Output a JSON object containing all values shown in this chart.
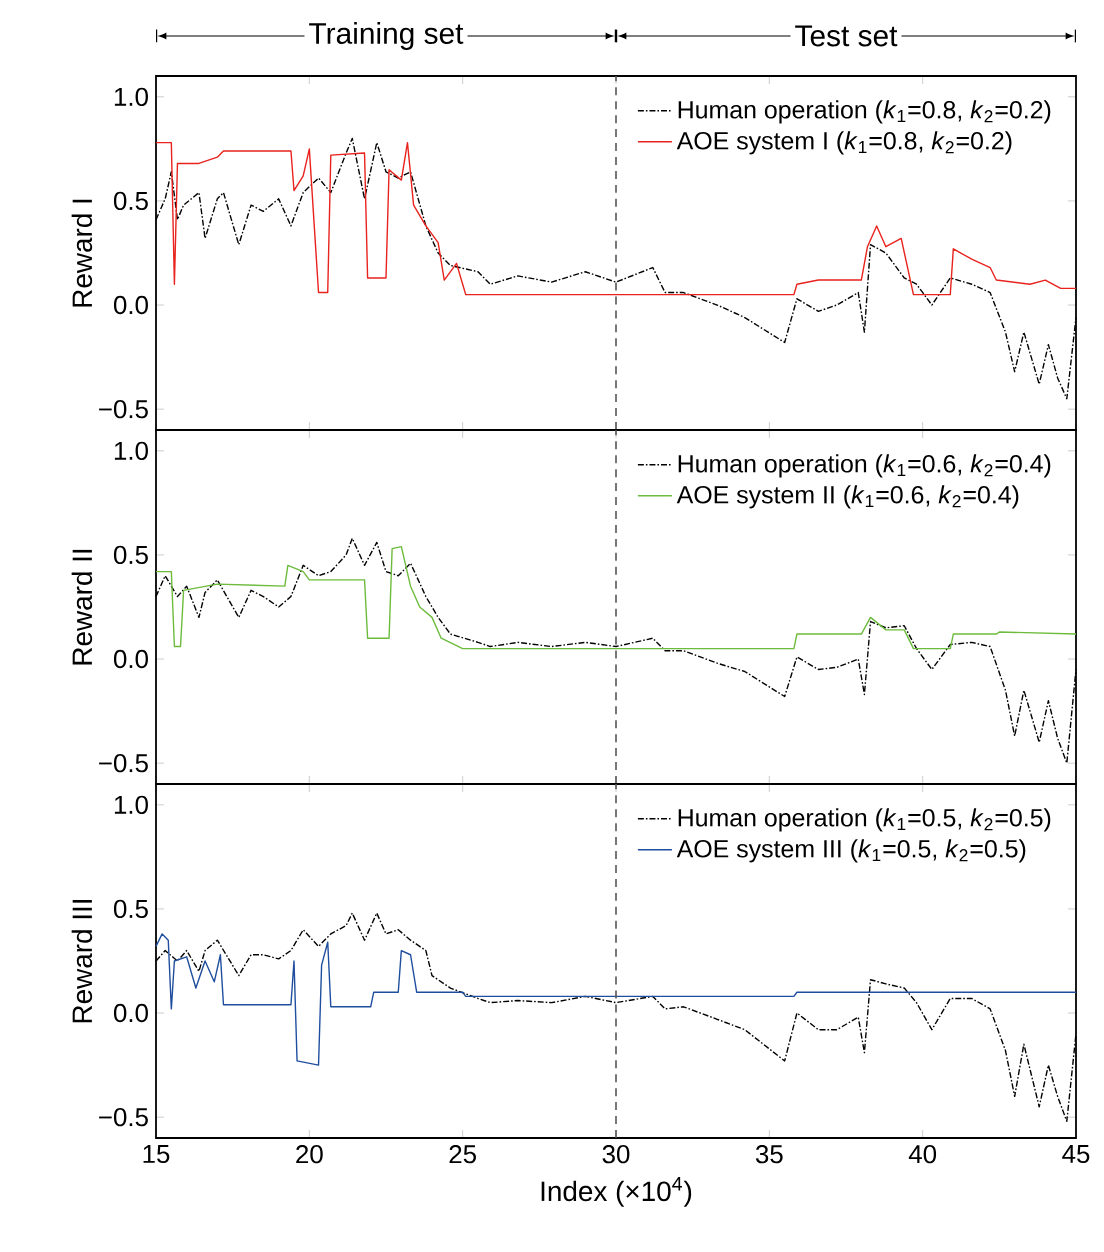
{
  "chart_data": [
    {
      "type": "line",
      "ylabel": "Reward I",
      "annotations": [
        "Training set",
        "Test set"
      ],
      "xlim": [
        15,
        45
      ],
      "ylim": [
        -0.6,
        1.1
      ],
      "xticks": [
        15,
        20,
        25,
        30,
        35,
        40,
        45
      ],
      "yticks": [
        {
          "value": -0.5,
          "label": "−0.5"
        },
        {
          "value": 0,
          "label": "0.0"
        },
        {
          "value": 0.5,
          "label": "0.5"
        },
        {
          "value": 1,
          "label": "1.0"
        }
      ],
      "tick_labels": "y",
      "legend": "top right",
      "ref_lines": [
        {
          "axis": "x",
          "value": 30,
          "color": "#555555",
          "line_style": "dashed"
        }
      ],
      "series": [
        {
          "name": "Human operation (*k*$_{1}$=0.8, *k*$_{2}$=0.2)",
          "color": "#000000",
          "line_style": "dashed",
          "x": [
            15.0,
            15.3,
            15.5,
            15.7,
            15.9,
            16.4,
            16.6,
            17.0,
            17.2,
            17.7,
            18.1,
            18.5,
            19.0,
            19.4,
            19.8,
            20.3,
            20.7,
            21.2,
            21.4,
            21.8,
            22.2,
            22.5,
            22.9,
            23.3,
            23.8,
            24.2,
            24.6,
            25.5,
            25.9,
            26.8,
            27.9,
            29.0,
            30.0,
            31.2,
            31.6,
            32.2,
            33.3,
            34.2,
            35.5,
            35.9,
            36.6,
            37.2,
            37.9,
            38.1,
            38.3,
            38.8,
            39.4,
            39.8,
            40.3,
            40.9,
            41.6,
            42.2,
            42.7,
            43.0,
            43.3,
            43.8,
            44.1,
            44.4,
            44.7,
            45.0
          ],
          "values": [
            0.41,
            0.51,
            0.64,
            0.41,
            0.48,
            0.54,
            0.32,
            0.51,
            0.54,
            0.29,
            0.48,
            0.45,
            0.51,
            0.38,
            0.54,
            0.61,
            0.54,
            0.73,
            0.8,
            0.51,
            0.78,
            0.64,
            0.61,
            0.64,
            0.38,
            0.25,
            0.19,
            0.16,
            0.1,
            0.14,
            0.11,
            0.16,
            0.11,
            0.18,
            0.06,
            0.06,
            0.0,
            -0.06,
            -0.18,
            0.03,
            -0.03,
            0.0,
            0.06,
            -0.13,
            0.29,
            0.25,
            0.13,
            0.1,
            0.0,
            0.13,
            0.1,
            0.06,
            -0.13,
            -0.32,
            -0.13,
            -0.38,
            -0.19,
            -0.35,
            -0.45,
            -0.06
          ]
        },
        {
          "name": "AOE system I (*k*$_{1}$=0.8, *k*$_{2}$=0.2)",
          "color": "#e8221c",
          "line_style": "solid",
          "x": [
            15.0,
            15.5,
            15.6,
            15.7,
            16.4,
            17.0,
            17.2,
            19.4,
            19.5,
            19.8,
            20.0,
            20.3,
            20.6,
            20.7,
            21.8,
            21.9,
            22.5,
            22.6,
            23.0,
            23.2,
            23.4,
            23.8,
            24.2,
            24.4,
            24.8,
            25.0,
            25.1,
            30.0,
            35.8,
            35.9,
            36.6,
            38.0,
            38.2,
            38.5,
            38.8,
            39.3,
            39.7,
            40.9,
            41.0,
            41.6,
            42.2,
            42.4,
            43.5,
            44.0,
            44.5,
            45.0
          ],
          "values": [
            0.78,
            0.78,
            0.1,
            0.68,
            0.68,
            0.71,
            0.74,
            0.74,
            0.55,
            0.62,
            0.75,
            0.06,
            0.06,
            0.72,
            0.73,
            0.13,
            0.13,
            0.65,
            0.6,
            0.78,
            0.48,
            0.38,
            0.3,
            0.12,
            0.2,
            0.1,
            0.05,
            0.05,
            0.05,
            0.1,
            0.12,
            0.12,
            0.28,
            0.38,
            0.28,
            0.32,
            0.05,
            0.05,
            0.27,
            0.22,
            0.18,
            0.12,
            0.1,
            0.12,
            0.08,
            0.08
          ]
        }
      ]
    },
    {
      "type": "line",
      "ylabel": "Reward II",
      "xlim": [
        15,
        45
      ],
      "ylim": [
        -0.6,
        1.1
      ],
      "xticks": [
        15,
        20,
        25,
        30,
        35,
        40,
        45
      ],
      "yticks": [
        {
          "value": -0.5,
          "label": "−0.5"
        },
        {
          "value": 0,
          "label": "0.0"
        },
        {
          "value": 0.5,
          "label": "0.5"
        },
        {
          "value": 1,
          "label": "1.0"
        }
      ],
      "tick_labels": "y",
      "legend": "top right",
      "ref_lines": [
        {
          "axis": "x",
          "value": 30,
          "color": "#555555",
          "line_style": "dashed"
        }
      ],
      "series": [
        {
          "name": "Human operation (*k*$_{1}$=0.6, *k*$_{2}$=0.4)",
          "color": "#000000",
          "line_style": "dashed",
          "x": [
            15.0,
            15.3,
            15.7,
            16.0,
            16.4,
            16.6,
            17.0,
            17.7,
            18.1,
            18.5,
            19.0,
            19.4,
            19.8,
            20.3,
            20.7,
            21.2,
            21.4,
            21.8,
            22.2,
            22.5,
            22.9,
            23.3,
            23.8,
            24.2,
            24.6,
            25.5,
            25.9,
            26.8,
            27.9,
            29.0,
            30.0,
            31.2,
            31.6,
            32.2,
            33.3,
            34.2,
            35.5,
            35.9,
            36.6,
            37.2,
            37.9,
            38.1,
            38.3,
            38.8,
            39.4,
            39.8,
            40.3,
            40.9,
            41.6,
            42.2,
            42.7,
            43.0,
            43.3,
            43.8,
            44.1,
            44.4,
            44.7,
            45.0
          ],
          "values": [
            0.3,
            0.4,
            0.3,
            0.35,
            0.2,
            0.32,
            0.38,
            0.2,
            0.33,
            0.3,
            0.25,
            0.3,
            0.45,
            0.4,
            0.42,
            0.5,
            0.58,
            0.45,
            0.56,
            0.42,
            0.4,
            0.46,
            0.3,
            0.2,
            0.12,
            0.08,
            0.06,
            0.08,
            0.06,
            0.08,
            0.06,
            0.1,
            0.04,
            0.04,
            -0.02,
            -0.06,
            -0.18,
            0.01,
            -0.05,
            -0.04,
            0.0,
            -0.17,
            0.18,
            0.15,
            0.16,
            0.05,
            -0.05,
            0.07,
            0.08,
            0.06,
            -0.15,
            -0.37,
            -0.15,
            -0.4,
            -0.2,
            -0.38,
            -0.5,
            -0.05
          ]
        },
        {
          "name": "AOE system II (*k*$_{1}$=0.6, *k*$_{2}$=0.4)",
          "color": "#6dbb3c",
          "line_style": "solid",
          "x": [
            15.0,
            15.5,
            15.6,
            15.8,
            15.9,
            17.0,
            19.2,
            19.3,
            19.8,
            20.0,
            21.8,
            21.9,
            22.6,
            22.7,
            23.0,
            23.3,
            23.6,
            24.0,
            24.3,
            25.0,
            30.0,
            35.8,
            35.9,
            38.0,
            38.3,
            38.8,
            39.4,
            39.7,
            40.9,
            41.0,
            42.4,
            42.5,
            45.0
          ],
          "values": [
            0.42,
            0.42,
            0.06,
            0.06,
            0.33,
            0.36,
            0.35,
            0.45,
            0.42,
            0.38,
            0.38,
            0.1,
            0.1,
            0.53,
            0.54,
            0.35,
            0.25,
            0.2,
            0.1,
            0.05,
            0.05,
            0.05,
            0.12,
            0.12,
            0.2,
            0.14,
            0.14,
            0.05,
            0.05,
            0.12,
            0.12,
            0.13,
            0.12
          ]
        }
      ]
    },
    {
      "type": "line",
      "xlabel": "Index (×10$^{4}$)",
      "ylabel": "Reward III",
      "xlim": [
        15,
        45
      ],
      "ylim": [
        -0.6,
        1.1
      ],
      "xticks": [
        15,
        20,
        25,
        30,
        35,
        40,
        45
      ],
      "yticks": [
        {
          "value": -0.5,
          "label": "−0.5"
        },
        {
          "value": 0,
          "label": "0.0"
        },
        {
          "value": 0.5,
          "label": "0.5"
        },
        {
          "value": 1,
          "label": "1.0"
        }
      ],
      "legend": "top right",
      "ref_lines": [
        {
          "axis": "x",
          "value": 30,
          "color": "#555555",
          "line_style": "dashed"
        }
      ],
      "series": [
        {
          "name": "Human operation (*k*$_{1}$=0.5, *k*$_{2}$=0.5)",
          "color": "#000000",
          "line_style": "dashed",
          "x": [
            15.0,
            15.3,
            15.7,
            16.0,
            16.4,
            16.6,
            17.0,
            17.7,
            18.1,
            18.5,
            19.0,
            19.4,
            19.8,
            20.3,
            20.7,
            21.2,
            21.4,
            21.8,
            22.2,
            22.5,
            22.9,
            23.3,
            23.8,
            24.0,
            24.6,
            25.5,
            25.9,
            26.8,
            27.9,
            29.0,
            30.0,
            31.2,
            31.6,
            32.2,
            33.3,
            34.2,
            35.5,
            35.9,
            36.6,
            37.2,
            37.9,
            38.1,
            38.3,
            38.8,
            39.4,
            39.8,
            40.3,
            40.9,
            41.6,
            42.2,
            42.7,
            43.0,
            43.3,
            43.8,
            44.1,
            44.4,
            44.7,
            45.0
          ],
          "values": [
            0.25,
            0.3,
            0.25,
            0.3,
            0.2,
            0.3,
            0.35,
            0.18,
            0.28,
            0.28,
            0.26,
            0.3,
            0.4,
            0.32,
            0.38,
            0.42,
            0.48,
            0.35,
            0.48,
            0.38,
            0.4,
            0.35,
            0.3,
            0.18,
            0.12,
            0.07,
            0.05,
            0.06,
            0.05,
            0.08,
            0.05,
            0.08,
            0.02,
            0.03,
            -0.03,
            -0.08,
            -0.23,
            0.0,
            -0.08,
            -0.08,
            -0.02,
            -0.19,
            0.16,
            0.14,
            0.12,
            0.05,
            -0.08,
            0.07,
            0.07,
            0.02,
            -0.18,
            -0.4,
            -0.15,
            -0.45,
            -0.25,
            -0.4,
            -0.52,
            -0.1
          ]
        },
        {
          "name": "AOE system III (*k*$_{1}$=0.5, *k*$_{2}$=0.5)",
          "color": "#1f4e9e",
          "line_style": "solid",
          "x": [
            15.0,
            15.2,
            15.4,
            15.5,
            15.6,
            16.0,
            16.3,
            16.6,
            16.9,
            17.1,
            17.2,
            19.4,
            19.5,
            19.6,
            20.3,
            20.4,
            20.6,
            20.7,
            22.0,
            22.1,
            22.9,
            23.0,
            23.3,
            23.5,
            25.0,
            25.1,
            30.0,
            35.8,
            35.9,
            45.0
          ],
          "values": [
            0.32,
            0.38,
            0.35,
            0.02,
            0.25,
            0.27,
            0.12,
            0.25,
            0.15,
            0.28,
            0.04,
            0.04,
            0.25,
            -0.23,
            -0.25,
            0.23,
            0.34,
            0.03,
            0.03,
            0.1,
            0.1,
            0.3,
            0.28,
            0.1,
            0.1,
            0.08,
            0.08,
            0.08,
            0.1,
            0.1
          ]
        }
      ]
    }
  ]
}
